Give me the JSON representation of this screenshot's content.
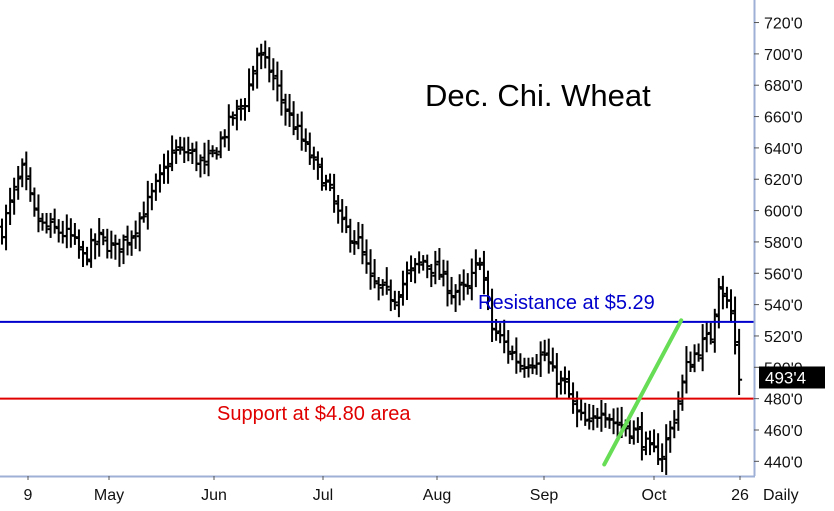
{
  "chart_data": {
    "type": "ohlc-bar",
    "title": "Dec. Chi. Wheat",
    "y_axis": {
      "ticks": [
        {
          "value": 440,
          "label": "440'0"
        },
        {
          "value": 460,
          "label": "460'0"
        },
        {
          "value": 480,
          "label": "480'0"
        },
        {
          "value": 500,
          "label": "500'0"
        },
        {
          "value": 520,
          "label": "520'0"
        },
        {
          "value": 540,
          "label": "540'0"
        },
        {
          "value": 560,
          "label": "560'0"
        },
        {
          "value": 580,
          "label": "580'0"
        },
        {
          "value": 600,
          "label": "600'0"
        },
        {
          "value": 620,
          "label": "620'0"
        },
        {
          "value": 640,
          "label": "640'0"
        },
        {
          "value": 660,
          "label": "660'0"
        },
        {
          "value": 680,
          "label": "680'0"
        },
        {
          "value": 700,
          "label": "700'0"
        },
        {
          "value": 720,
          "label": "720'0"
        }
      ],
      "range": [
        430,
        728
      ],
      "position": "right"
    },
    "x_axis": {
      "labels": [
        "9",
        "May",
        "Jun",
        "Jul",
        "Aug",
        "Sep",
        "Oct",
        "26"
      ],
      "period_label": "Daily"
    },
    "last_price": {
      "value": 493.5,
      "label": "493'4",
      "color": "#000000"
    },
    "lines": [
      {
        "name": "resistance",
        "value": 529,
        "label": "Resistance at $5.29",
        "color": "#0000cc"
      },
      {
        "name": "support",
        "value": 480,
        "label": "Support at $4.80 area",
        "color": "#e00000"
      }
    ],
    "trendline": {
      "from": {
        "bar": 145,
        "price": 438
      },
      "to": {
        "bar": 164,
        "price": 530
      },
      "color": "#66dd55"
    },
    "anchors": [
      [
        0,
        588
      ],
      [
        3,
        612
      ],
      [
        5,
        625
      ],
      [
        8,
        598
      ],
      [
        10,
        590
      ],
      [
        13,
        588
      ],
      [
        17,
        583
      ],
      [
        20,
        570
      ],
      [
        24,
        582
      ],
      [
        28,
        575
      ],
      [
        32,
        585
      ],
      [
        35,
        600
      ],
      [
        39,
        620
      ],
      [
        42,
        637
      ],
      [
        46,
        638
      ],
      [
        50,
        628
      ],
      [
        53,
        640
      ],
      [
        57,
        660
      ],
      [
        60,
        670
      ],
      [
        63,
        700
      ],
      [
        66,
        690
      ],
      [
        70,
        665
      ],
      [
        74,
        645
      ],
      [
        77,
        630
      ],
      [
        81,
        612
      ],
      [
        84,
        590
      ],
      [
        88,
        580
      ],
      [
        91,
        555
      ],
      [
        94,
        548
      ],
      [
        97,
        545
      ],
      [
        100,
        558
      ],
      [
        104,
        568
      ],
      [
        108,
        560
      ],
      [
        111,
        548
      ],
      [
        115,
        550
      ],
      [
        118,
        570
      ],
      [
        121,
        525
      ],
      [
        124,
        515
      ],
      [
        128,
        502
      ],
      [
        131,
        505
      ],
      [
        134,
        508
      ],
      [
        136,
        496
      ],
      [
        139,
        488
      ],
      [
        142,
        470
      ],
      [
        145,
        462
      ],
      [
        148,
        475
      ],
      [
        151,
        465
      ],
      [
        154,
        462
      ],
      [
        157,
        458
      ],
      [
        160,
        446
      ],
      [
        163,
        445
      ],
      [
        166,
        468
      ],
      [
        169,
        500
      ],
      [
        172,
        512
      ],
      [
        175,
        520
      ],
      [
        177,
        555
      ],
      [
        180,
        534
      ],
      [
        182,
        493.5
      ]
    ],
    "ohlc": {
      "n_bars": 183,
      "open_offset": 0.35,
      "close_offset": 0.5,
      "range_base": 8,
      "range_amp": 7
    }
  }
}
